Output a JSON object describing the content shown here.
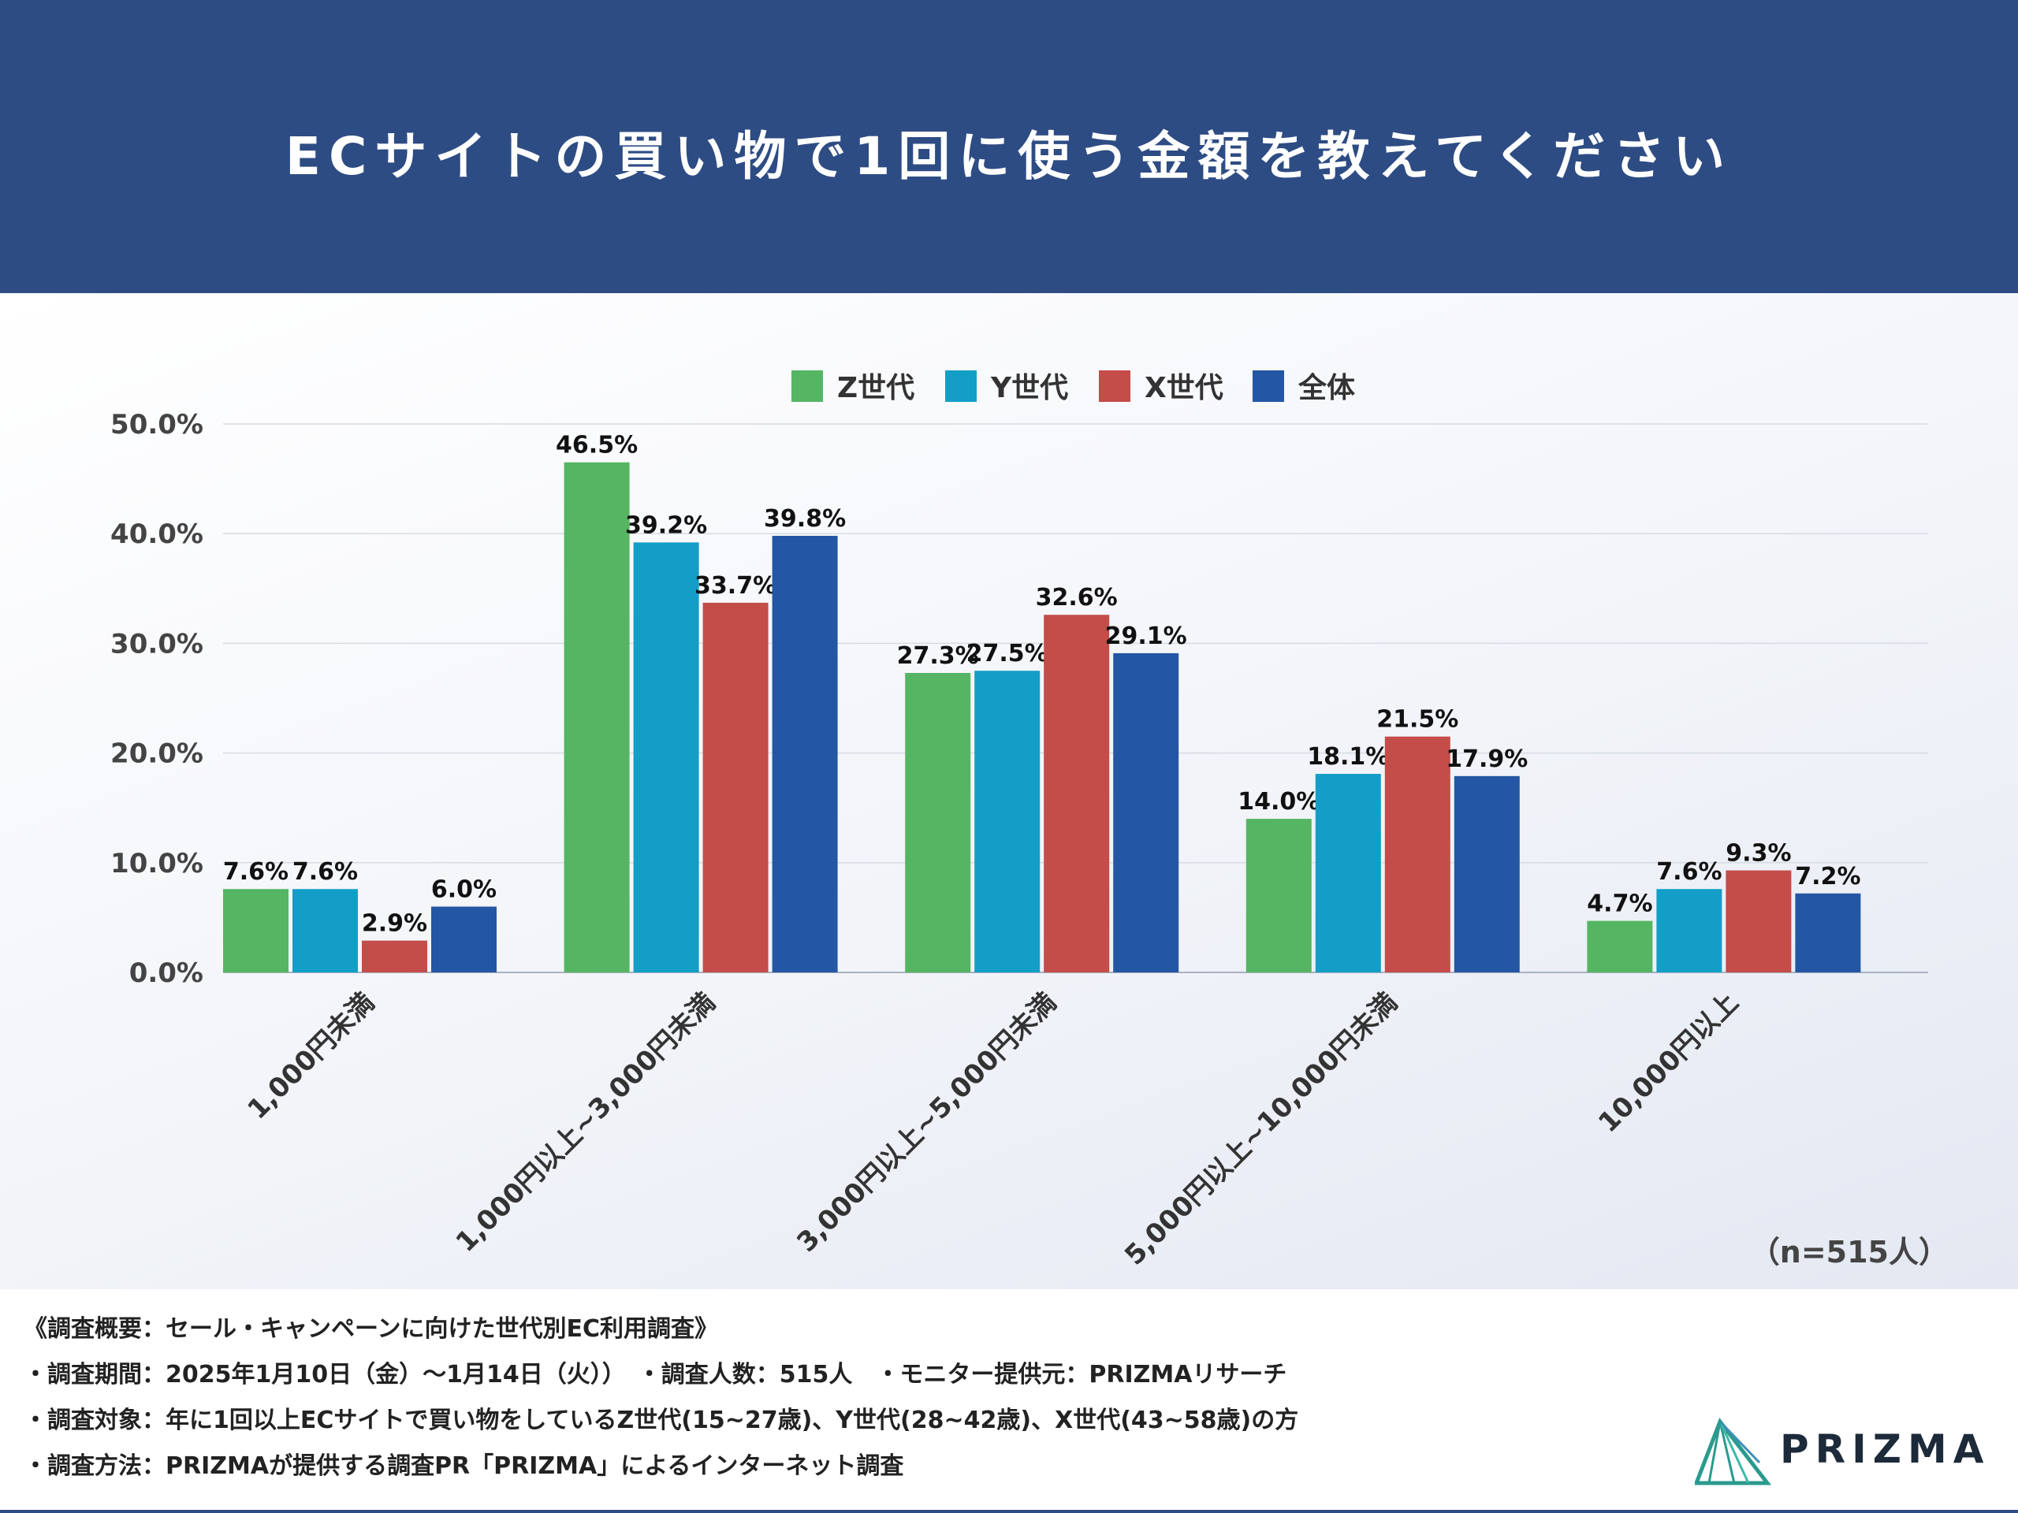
{
  "header": {
    "title": "ECサイトの買い物で1回に使う金額を教えてください",
    "background": "#2e4c84"
  },
  "chart_data": {
    "type": "bar",
    "title": "ECサイトの買い物で1回に使う金額を教えてください",
    "categories": [
      "1,000円未満",
      "1,000円以上~3,000円未満",
      "3,000円以上~5,000円未満",
      "5,000円以上~10,000円未満",
      "10,000円以上"
    ],
    "series": [
      {
        "name": "Z世代",
        "color": "#55b563",
        "values": [
          7.6,
          46.5,
          27.3,
          14.0,
          4.7
        ],
        "labels": [
          "7.6%",
          "46.5%",
          "27.3%",
          "14.0%",
          "4.7%"
        ]
      },
      {
        "name": "Y世代",
        "color": "#139ec8",
        "values": [
          7.6,
          39.2,
          27.5,
          18.1,
          7.6
        ],
        "labels": [
          "7.6%",
          "39.2%",
          "27.5%",
          "18.1%",
          "7.6%"
        ]
      },
      {
        "name": "X世代",
        "color": "#c44c49",
        "values": [
          2.9,
          33.7,
          32.6,
          21.5,
          9.3
        ],
        "labels": [
          "2.9%",
          "33.7%",
          "32.6%",
          "21.5%",
          "9.3%"
        ]
      },
      {
        "name": "全体",
        "color": "#2457a3",
        "values": [
          6.0,
          39.8,
          29.1,
          17.9,
          7.2
        ],
        "labels": [
          "6.0%",
          "39.8%",
          "29.1%",
          "17.9%",
          "7.2%"
        ]
      }
    ],
    "y_ticks": [
      "0.0%",
      "10.0%",
      "20.0%",
      "30.0%",
      "40.0%",
      "50.0%"
    ],
    "ylim": [
      0,
      50
    ],
    "grid": true,
    "legend_position": "top-center",
    "xlabel": "",
    "ylabel": ""
  },
  "sample_size": "（n=515人）",
  "footer": {
    "lines": [
      "《調査概要：セール・キャンペーンに向けた世代別EC利用調査》",
      "・調査期間：2025年1月10日（金）〜1月14日（火））　・調査人数：515人　・モニター提供元：PRIZMAリサーチ",
      "・調査対象：年に1回以上ECサイトで買い物をしているZ世代(15~27歳)、Y世代(28~42歳)、X世代(43~58歳)の方",
      "・調査方法：PRIZMAが提供する調査PR「PRIZMA」によるインターネット調査"
    ]
  },
  "logo": {
    "text": "PRIZMA",
    "icon": "prism-triangle-icon"
  }
}
